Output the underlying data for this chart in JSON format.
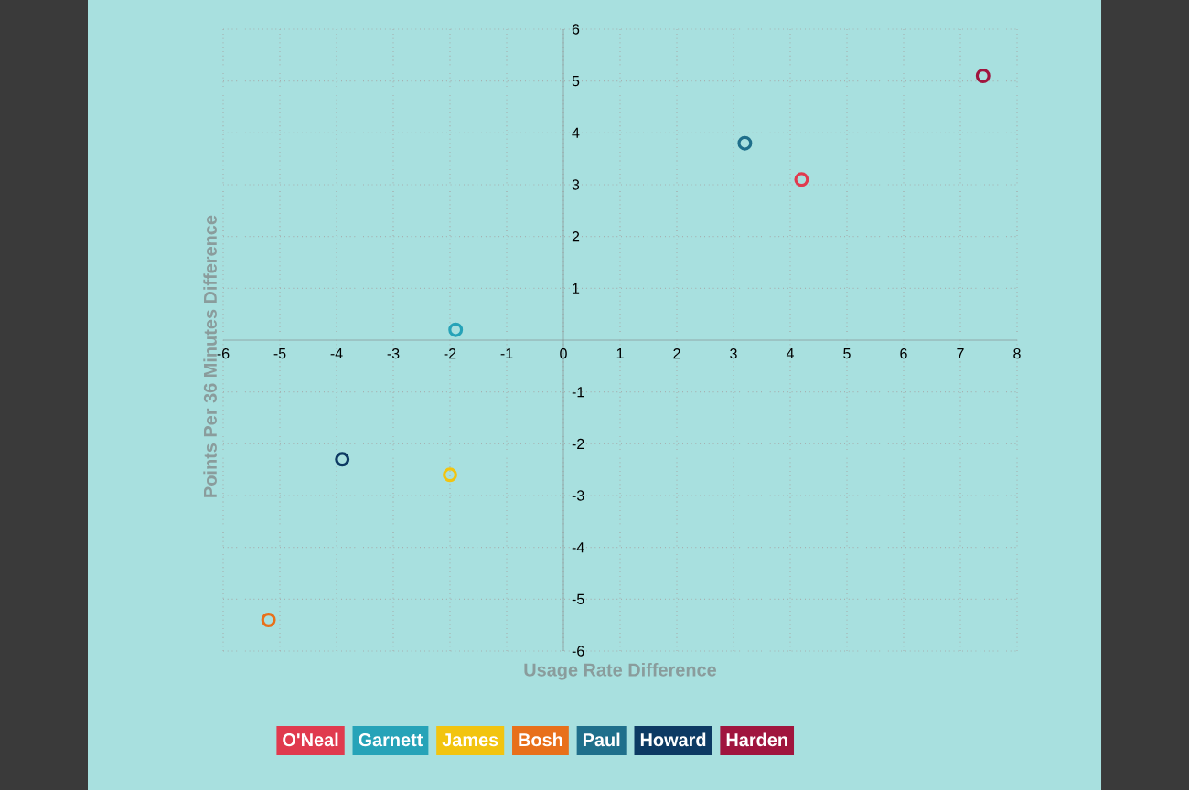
{
  "chart_data": {
    "type": "scatter",
    "xlabel": "Usage Rate Difference",
    "ylabel": "Points Per 36 Minutes Difference",
    "xlim": [
      -6,
      8
    ],
    "ylim": [
      -6,
      6
    ],
    "xticks": [
      -6,
      -5,
      -4,
      -3,
      -2,
      -1,
      0,
      1,
      2,
      3,
      4,
      5,
      6,
      7,
      8
    ],
    "yticks": [
      -6,
      -5,
      -4,
      -3,
      -2,
      -1,
      1,
      2,
      3,
      4,
      5,
      6
    ],
    "grid": true,
    "legend": "bottom",
    "marker": "circle",
    "series": [
      {
        "name": "O'Neal",
        "color": "#e03a4e",
        "x": [
          4.2
        ],
        "values": [
          3.1
        ]
      },
      {
        "name": "Garnett",
        "color": "#26a3b8",
        "x": [
          -1.9
        ],
        "values": [
          0.2
        ]
      },
      {
        "name": "James",
        "color": "#f2c40f",
        "x": [
          -2.0
        ],
        "values": [
          -2.6
        ]
      },
      {
        "name": "Bosh",
        "color": "#e8701a",
        "x": [
          -5.2
        ],
        "values": [
          -5.4
        ]
      },
      {
        "name": "Paul",
        "color": "#1f6f8b",
        "x": [
          3.2
        ],
        "values": [
          3.8
        ]
      },
      {
        "name": "Howard",
        "color": "#0d3a63",
        "x": [
          -3.9
        ],
        "values": [
          -2.3
        ]
      },
      {
        "name": "Harden",
        "color": "#a0153e",
        "x": [
          7.4
        ],
        "values": [
          5.1
        ]
      }
    ]
  }
}
